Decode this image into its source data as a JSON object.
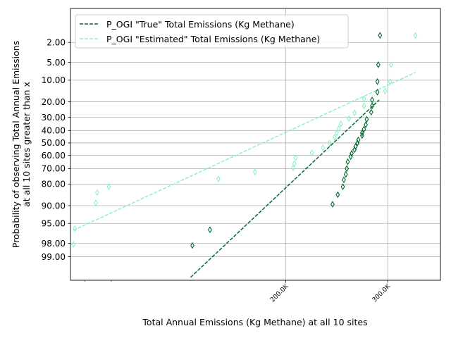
{
  "chart_data": {
    "type": "scatter",
    "xlabel": "Total Annual Emissions (Kg Methane) at all 10 sites",
    "ylabel_line1": "Probability of observing Total Annual Emissions",
    "ylabel_line2": "at all 10 sites greater than x",
    "x_scale": "log",
    "y_scale": "probability (normal quantile), reversed",
    "xlim": [
      85000,
      370000
    ],
    "ylim_percent": [
      0.3,
      99.75
    ],
    "grid": true,
    "legend_position": "top-left",
    "x_major_ticks": [
      {
        "value": 200000,
        "label": "200.0K"
      },
      {
        "value": 300000,
        "label": "300.0K"
      }
    ],
    "x_minor_ticks": [
      90000,
      100000,
      400000
    ],
    "y_ticks": [
      {
        "value": 2,
        "label": "2.00"
      },
      {
        "value": 5,
        "label": "5.00"
      },
      {
        "value": 10,
        "label": "10.00"
      },
      {
        "value": 20,
        "label": "20.00"
      },
      {
        "value": 30,
        "label": "30.00"
      },
      {
        "value": 40,
        "label": "40.00"
      },
      {
        "value": 50,
        "label": "50.00"
      },
      {
        "value": 60,
        "label": "60.00"
      },
      {
        "value": 70,
        "label": "70.00"
      },
      {
        "value": 80,
        "label": "80.00"
      },
      {
        "value": 90,
        "label": "90.00"
      },
      {
        "value": 95,
        "label": "95.00"
      },
      {
        "value": 98,
        "label": "98.00"
      },
      {
        "value": 99,
        "label": "99.00"
      }
    ],
    "series": [
      {
        "name": "P_OGI \"True\" Total Emissions (Kg Methane)",
        "color": "#006b2e",
        "fit_line": [
          [
            137000,
            99.7
          ],
          [
            290000,
            19.0
          ]
        ],
        "points": [
          [
            291000,
            1.4
          ],
          [
            289000,
            5.5
          ],
          [
            288000,
            10.5
          ],
          [
            288000,
            15.0
          ],
          [
            282000,
            19.0
          ],
          [
            282000,
            22.5
          ],
          [
            281000,
            26.5
          ],
          [
            276000,
            31.5
          ],
          [
            275000,
            35.5
          ],
          [
            273000,
            39.0
          ],
          [
            271000,
            42.0
          ],
          [
            271000,
            44.0
          ],
          [
            267000,
            47.5
          ],
          [
            266000,
            50.0
          ],
          [
            264000,
            53.0
          ],
          [
            263000,
            55.5
          ],
          [
            260000,
            58.5
          ],
          [
            259000,
            61.0
          ],
          [
            256000,
            65.0
          ],
          [
            255000,
            70.0
          ],
          [
            254000,
            74.0
          ],
          [
            252000,
            77.5
          ],
          [
            251000,
            81.5
          ],
          [
            246000,
            85.5
          ],
          [
            241000,
            89.5
          ],
          [
            148000,
            96.2
          ],
          [
            138000,
            98.2
          ]
        ]
      },
      {
        "name": "P_OGI \"Estimated\" Total Emissions (Kg Methane)",
        "color": "#8ef0c8",
        "fit_line": [
          [
            86000,
            96.3
          ],
          [
            335000,
            7.5
          ]
        ],
        "points": [
          [
            335000,
            1.4
          ],
          [
            304000,
            5.5
          ],
          [
            303000,
            10.5
          ],
          [
            297000,
            14.5
          ],
          [
            273000,
            18.5
          ],
          [
            273000,
            22.5
          ],
          [
            263000,
            27.0
          ],
          [
            257000,
            31.0
          ],
          [
            249000,
            35.0
          ],
          [
            247000,
            38.5
          ],
          [
            245000,
            42.0
          ],
          [
            243000,
            45.5
          ],
          [
            238000,
            50.0
          ],
          [
            232000,
            54.0
          ],
          [
            222000,
            58.0
          ],
          [
            208000,
            62.0
          ],
          [
            207000,
            66.5
          ],
          [
            206000,
            69.5
          ],
          [
            177000,
            72.5
          ],
          [
            153000,
            77.0
          ],
          [
            99000,
            81.5
          ],
          [
            94500,
            84.5
          ],
          [
            94000,
            89.0
          ],
          [
            86500,
            96.0
          ],
          [
            86000,
            98.1
          ]
        ]
      }
    ]
  }
}
